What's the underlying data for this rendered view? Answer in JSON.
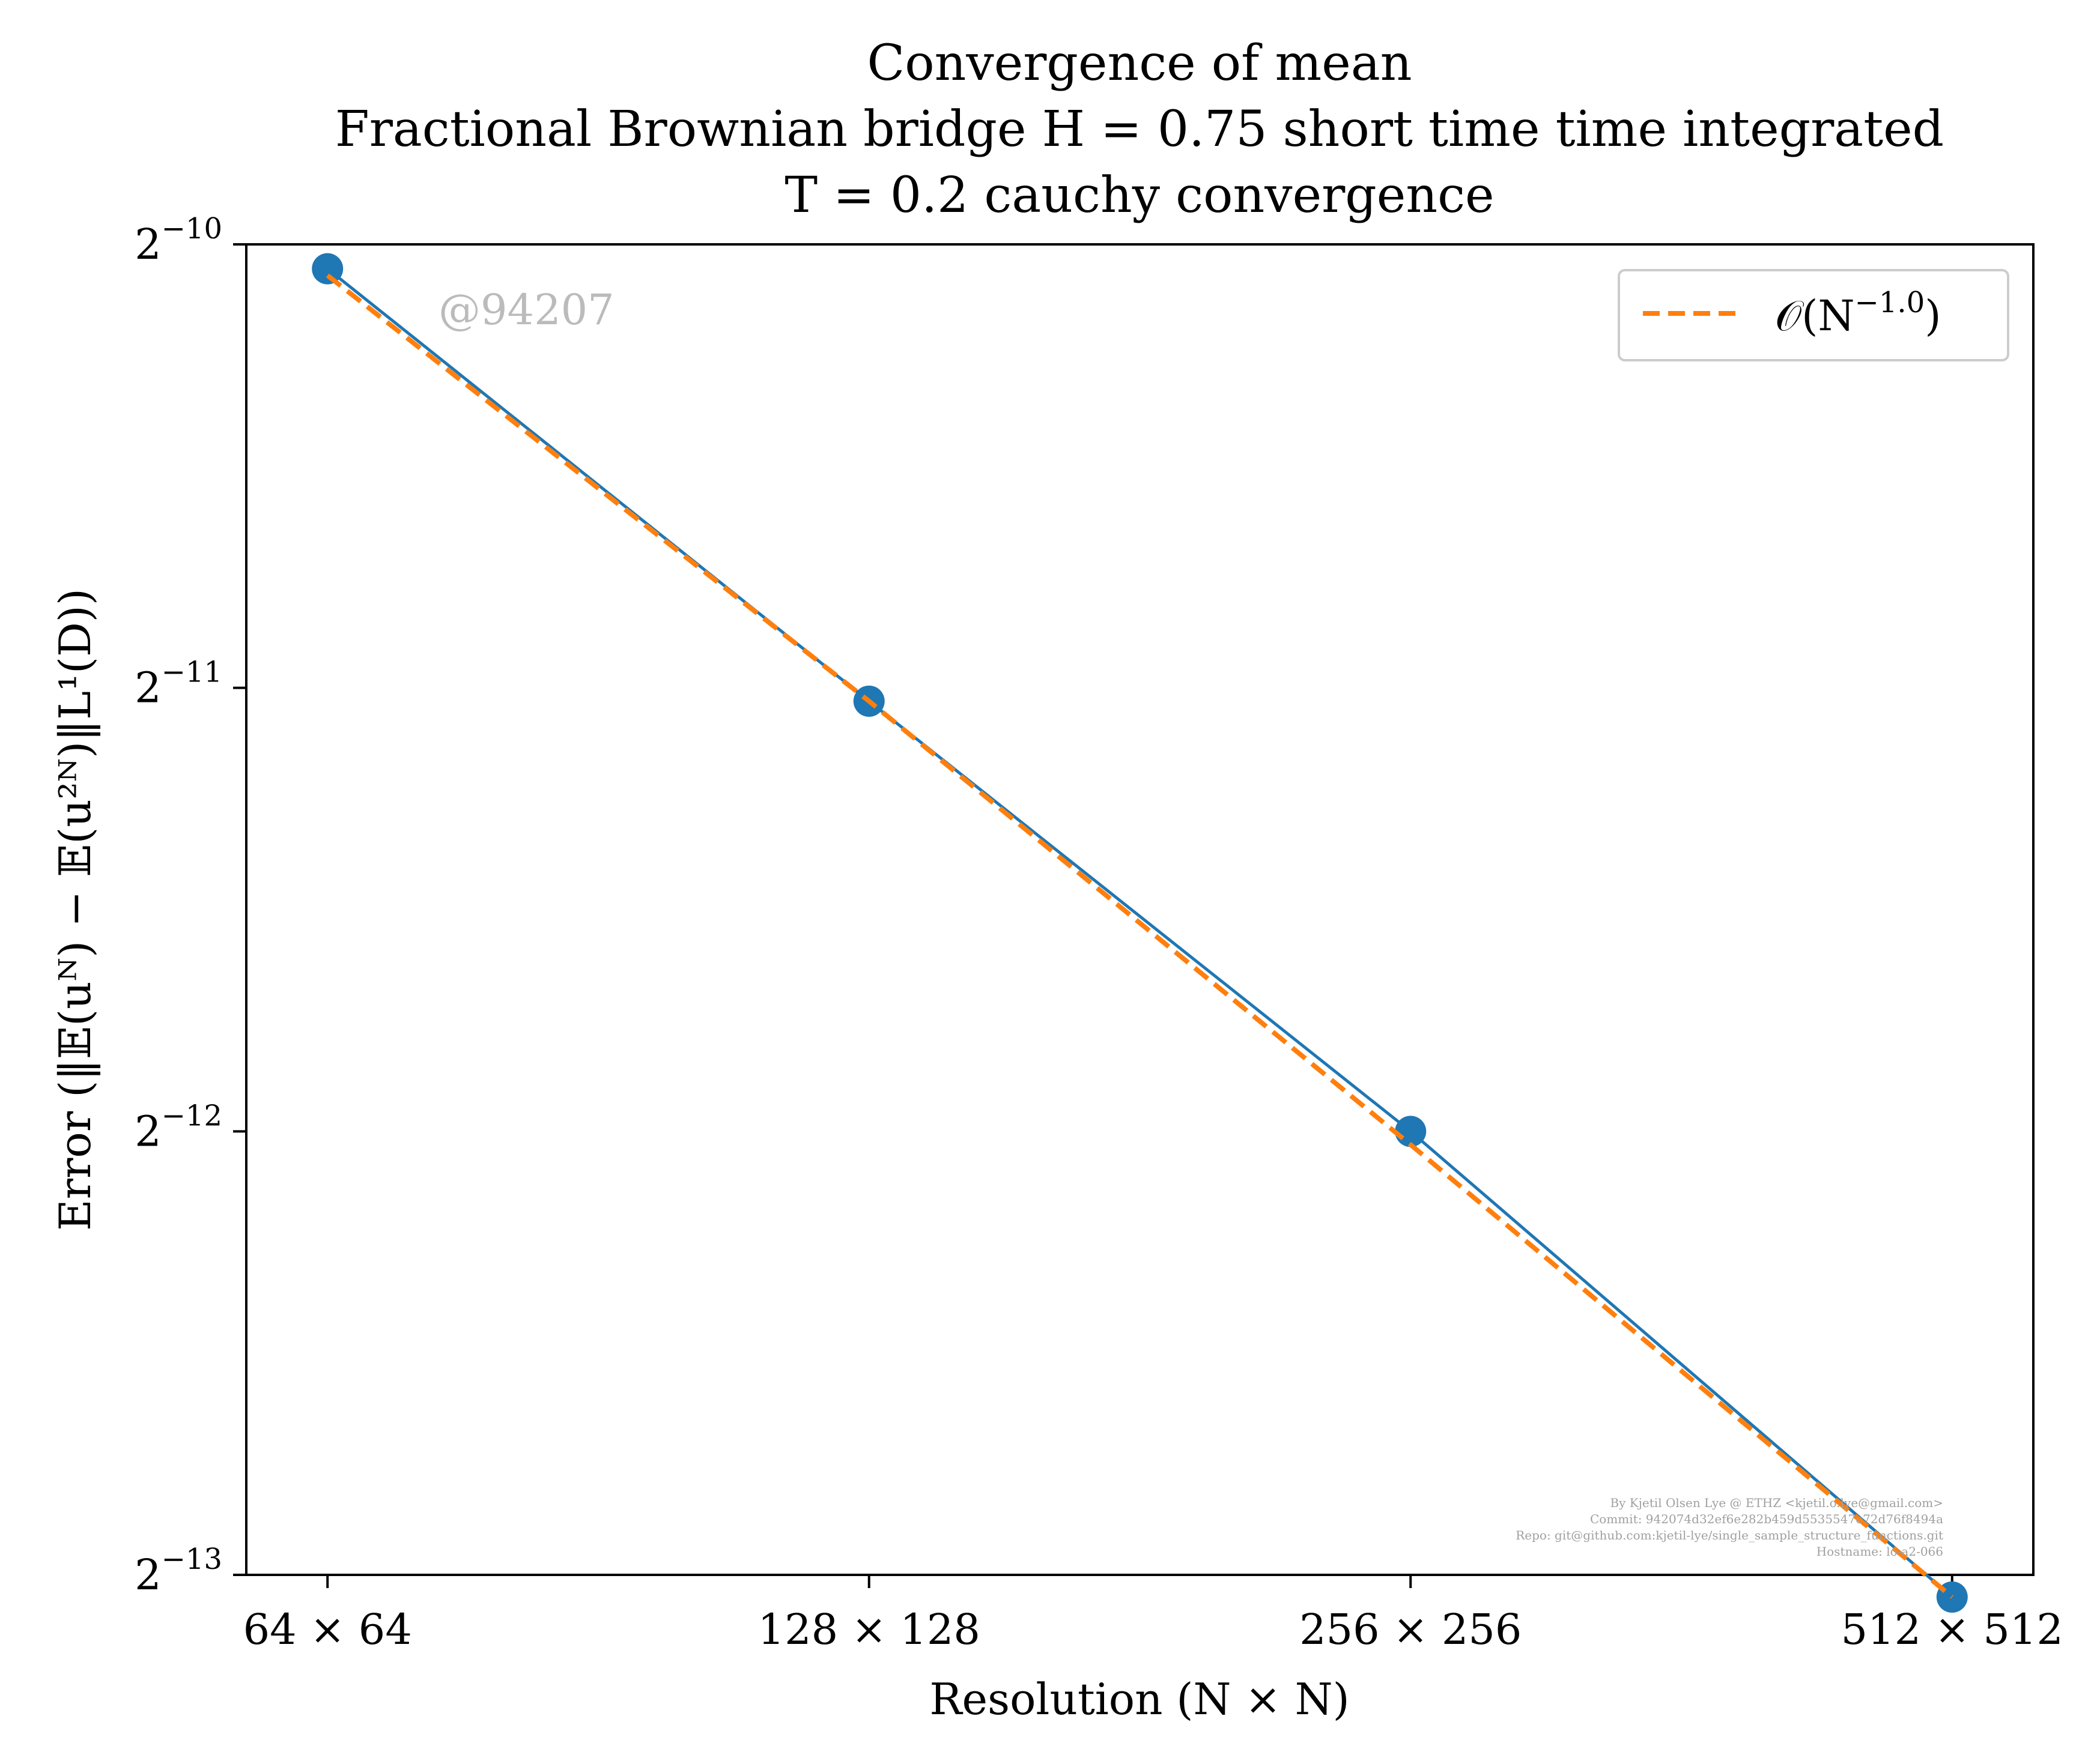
{
  "chart_data": {
    "type": "line",
    "title_lines": [
      "Convergence of mean",
      "Fractional Brownian bridge H = 0.75 short time time integrated",
      "T = 0.2 cauchy convergence"
    ],
    "xlabel": "Resolution (N × N)",
    "ylabel": "Error (‖𝔼(uᴺ) − 𝔼(u²ᴺ)‖L¹(D))",
    "x_scale": "log2",
    "y_scale": "log2",
    "x": [
      64,
      128,
      256,
      512
    ],
    "x_tick_labels": [
      "64 × 64",
      "128 × 128",
      "256 × 256",
      "512 × 512"
    ],
    "y_ticks": [
      {
        "value_log2": -10,
        "base": "2",
        "exp": "−10"
      },
      {
        "value_log2": -11,
        "base": "2",
        "exp": "−11"
      },
      {
        "value_log2": -12,
        "base": "2",
        "exp": "−12"
      },
      {
        "value_log2": -13,
        "base": "2",
        "exp": "−13"
      }
    ],
    "ylim_log2": [
      -13,
      -10
    ],
    "xlim_log2": [
      5.85,
      9.15
    ],
    "series": [
      {
        "values_log2": [
          -10.055,
          -11.03,
          -12.0,
          -13.05
        ],
        "color": "#1f77b4",
        "marker": "circle",
        "linestyle": "solid"
      },
      {
        "name": "𝒪(N^−1.0)",
        "values_log2": [
          -10.07,
          -11.03,
          -12.03,
          -13.05
        ],
        "color": "#ff7f0e",
        "linestyle": "dashed"
      }
    ],
    "legend": {
      "position": "top-right",
      "label_main": "𝒪(N",
      "label_exp": "−1.0",
      "label_close": ")"
    },
    "grid": false
  },
  "watermark": "@94207",
  "credits": [
    "By Kjetil Olsen Lye @ ETHZ <kjetil.o.lye@gmail.com>",
    "Commit: 942074d32ef6e282b459d5535547e72d76f8494a",
    "Repo: git@github.com:kjetil-lye/single_sample_structure_functions.git",
    "Hostname: lo-a2-066"
  ]
}
